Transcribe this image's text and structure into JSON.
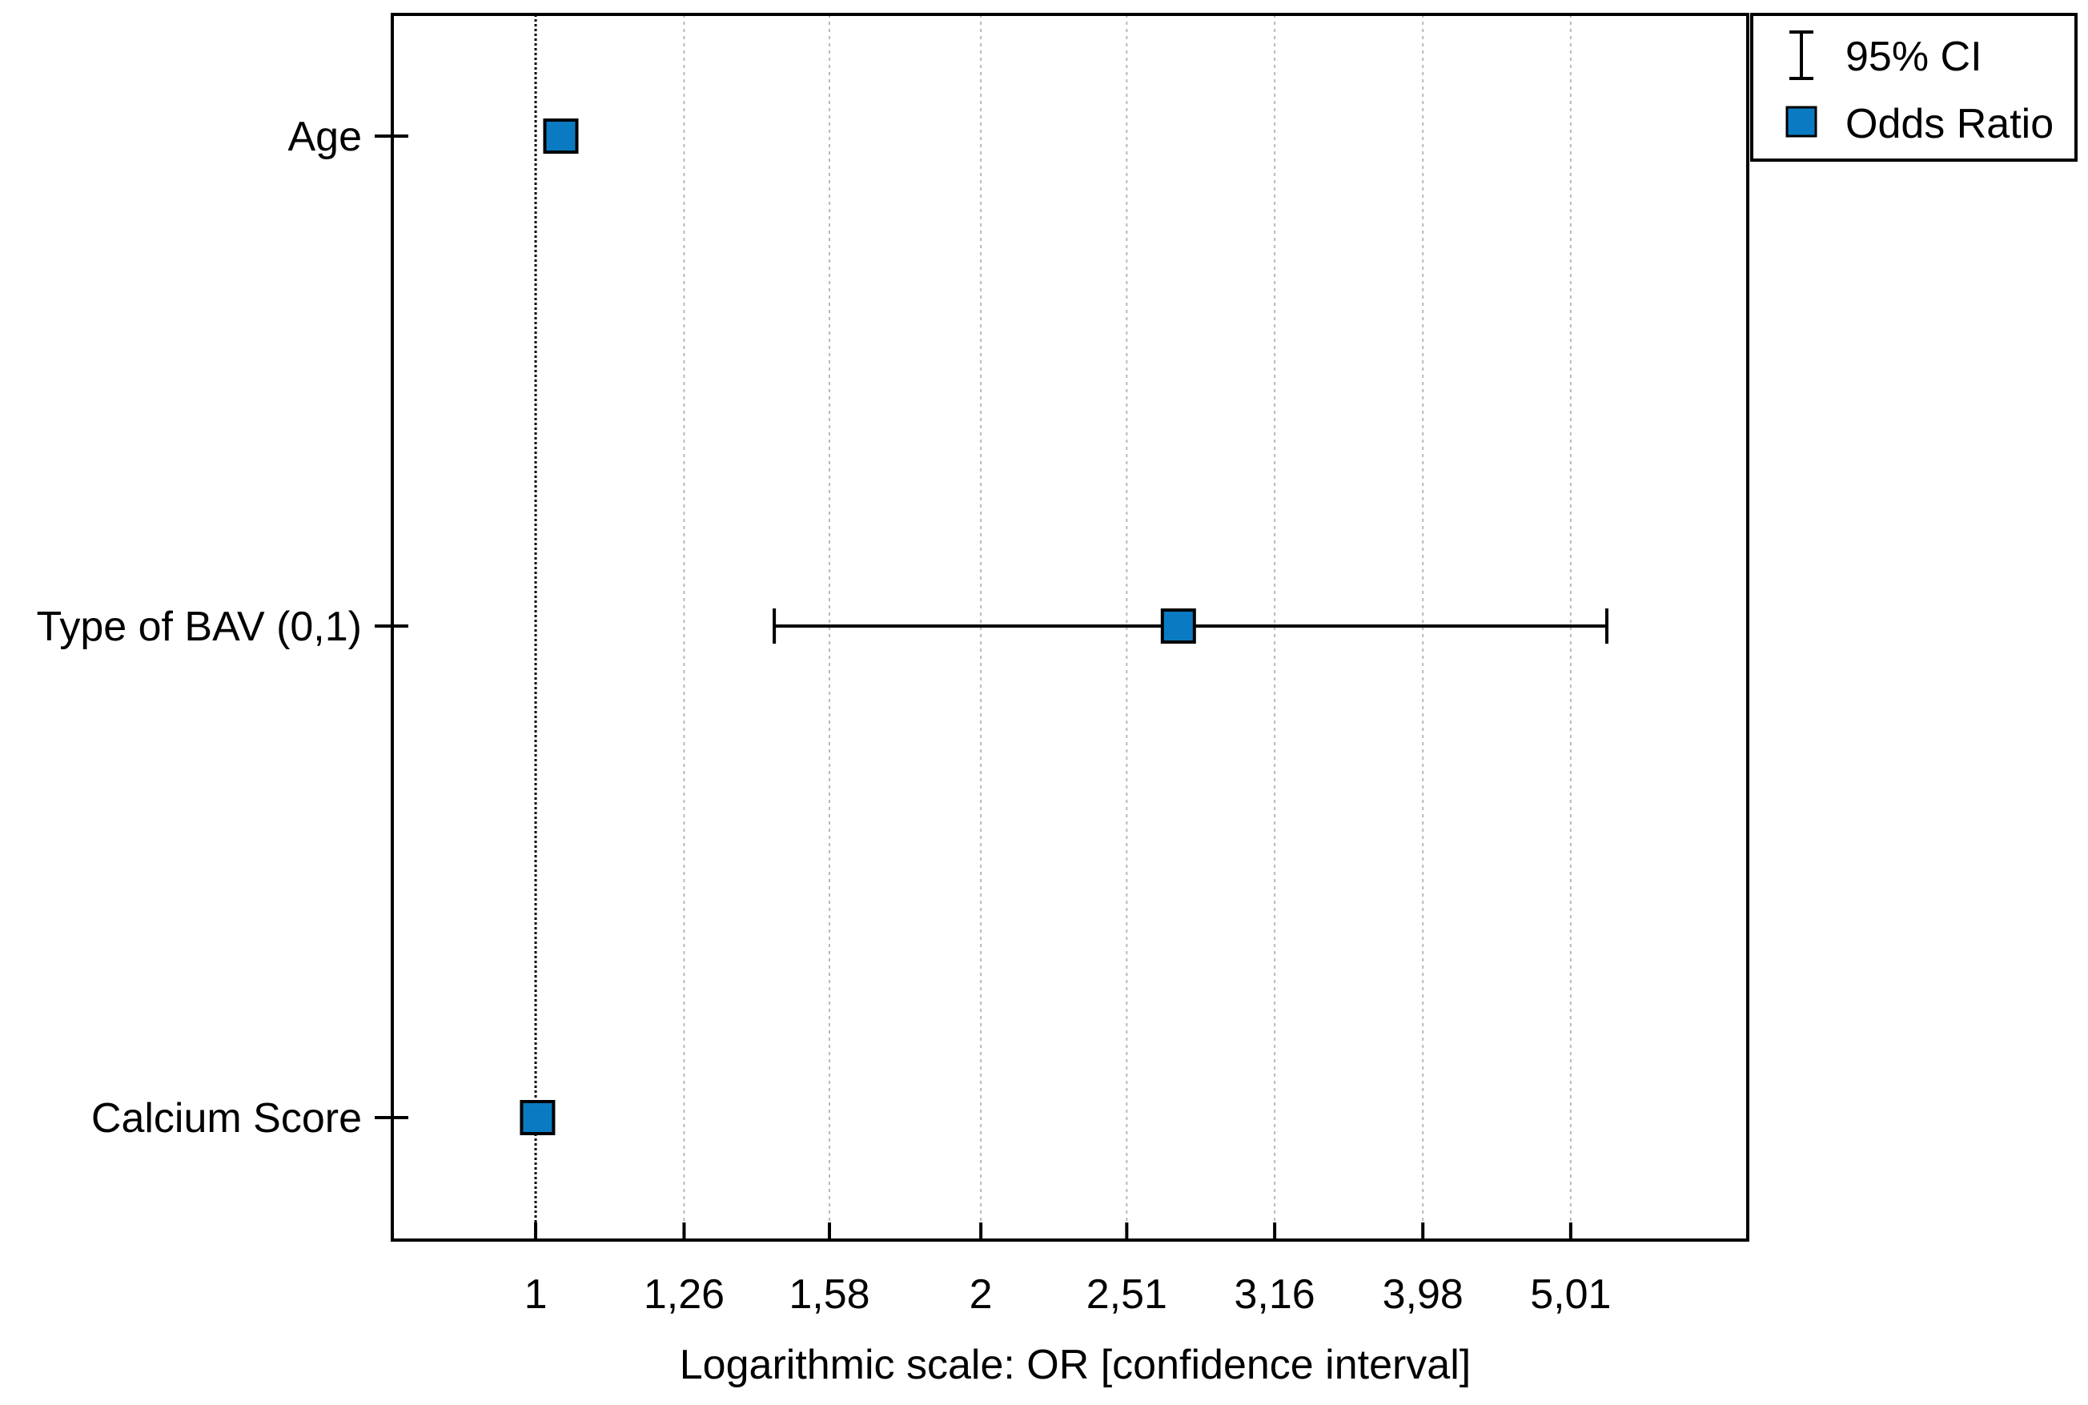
{
  "chart_data": {
    "type": "forest",
    "xlabel": "Logarithmic scale: OR [confidence interval]",
    "x_scale": "log",
    "xlim": [
      0.8,
      6.6
    ],
    "x_ticks": [
      {
        "value": 1,
        "label": "1"
      },
      {
        "value": 1.26,
        "label": "1,26"
      },
      {
        "value": 1.58,
        "label": "1,58"
      },
      {
        "value": 2,
        "label": "2"
      },
      {
        "value": 2.51,
        "label": "2,51"
      },
      {
        "value": 3.16,
        "label": "3,16"
      },
      {
        "value": 3.98,
        "label": "3,98"
      },
      {
        "value": 5.01,
        "label": "5,01"
      }
    ],
    "reference_line": 1,
    "grid": "vertical-dotted",
    "categories": [
      "Age",
      "Type of BAV (0,1)",
      "Calcium Score"
    ],
    "series": [
      {
        "name": "Odds Ratio",
        "values": [
          1.04,
          2.72,
          1.003
        ],
        "ci_lower": [
          null,
          1.45,
          null
        ],
        "ci_upper": [
          null,
          5.3,
          null
        ]
      }
    ],
    "legend": {
      "position": "top-right-outside",
      "items": [
        {
          "label": "95% CI",
          "symbol": "errorbar"
        },
        {
          "label": "Odds Ratio",
          "symbol": "square"
        }
      ]
    },
    "colors": {
      "marker": "#0a7bc2",
      "marker_edge": "#000000",
      "line": "#000000",
      "grid": "#b8b8b8"
    }
  }
}
